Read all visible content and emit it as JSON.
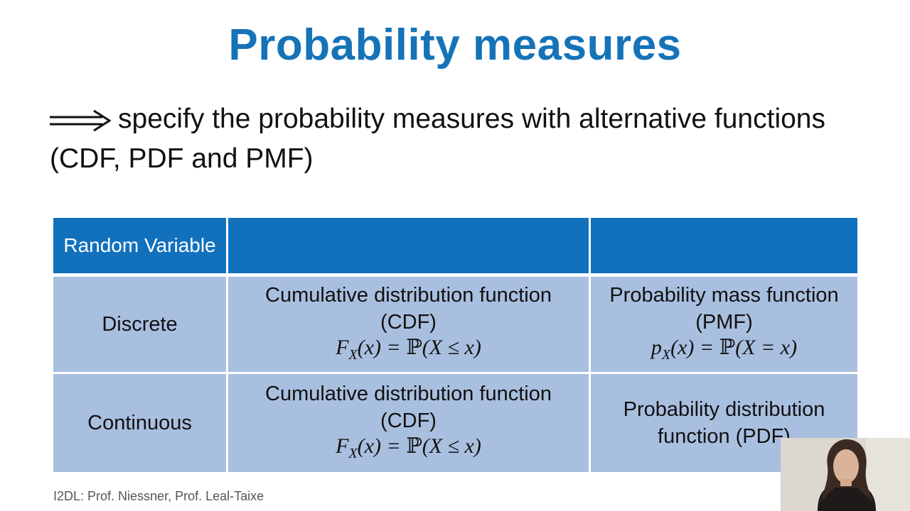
{
  "slide": {
    "title": "Probability measures",
    "bullet_text": "specify the probability measures with alternative functions (CDF, PDF and PMF)",
    "footer": "I2DL: Prof. Niessner, Prof. Leal-Taixe",
    "arrow_icon": "double-long-right-arrow",
    "colors": {
      "title": "#1673b8",
      "header": "#1271bd",
      "cell": "#a9bfdf"
    }
  },
  "table": {
    "header": [
      "Random Variable",
      "",
      ""
    ],
    "rows": [
      {
        "variable": "Discrete",
        "col2_name": "Cumulative distribution function",
        "col2_abbr": "(CDF)",
        "col2_formula": "F_X(x) = ℙ(X ≤ x)",
        "col3_name": "Probability mass function",
        "col3_abbr": "(PMF)",
        "col3_formula": "p_X(x) = ℙ(X = x)"
      },
      {
        "variable": "Continuous",
        "col2_name": "Cumulative distribution function",
        "col2_abbr": "(CDF)",
        "col2_formula": "F_X(x) = ℙ(X ≤ x)",
        "col3_name": "Probability distribution function (PDF)"
      }
    ]
  },
  "webcam": {
    "icon": "presenter-webcam-overlay"
  }
}
